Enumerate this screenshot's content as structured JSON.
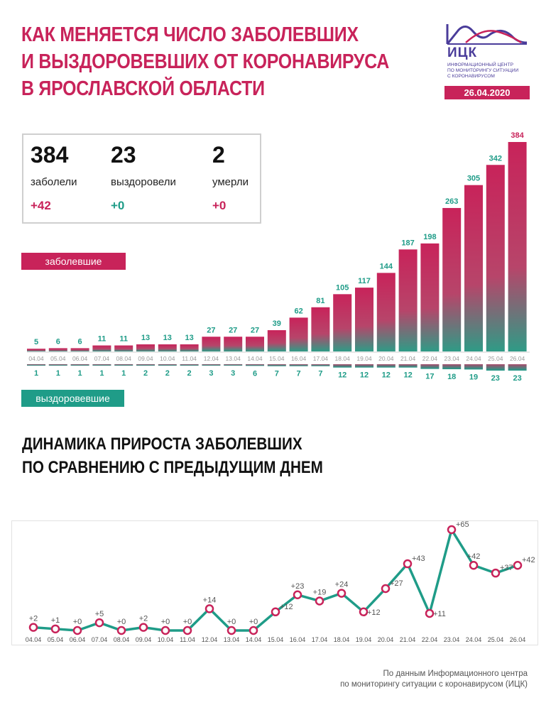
{
  "header": {
    "title_lines": [
      "Как меняется число заболевших",
      "и выздоровевших от коронавируса",
      "в Ярославской области"
    ]
  },
  "logo": {
    "abbr": "ИЦК",
    "text_lines": [
      "Информационный центр",
      "по мониторингу ситуации",
      "с коронавирусом"
    ],
    "date": "26.04.2020"
  },
  "summary": {
    "infected": {
      "value": "384",
      "label": "заболели",
      "delta": "+42"
    },
    "recovered": {
      "value": "23",
      "label": "выздоровели",
      "delta": "+0"
    },
    "died": {
      "value": "2",
      "label": "умерли",
      "delta": "+0"
    }
  },
  "legend": {
    "infected_label": "заболевшие",
    "recovered_label": "выздоровевшие"
  },
  "colors": {
    "accent_red": "#c8235a",
    "accent_green": "#1f9c88",
    "brand_purple": "#4a3c9a"
  },
  "chart_data": [
    {
      "type": "bar",
      "categories": [
        "04.04",
        "05.04",
        "06.04",
        "07.04",
        "08.04",
        "09.04",
        "10.04",
        "11.04",
        "12.04",
        "13.04",
        "14.04",
        "15.04",
        "16.04",
        "17.04",
        "18.04",
        "19.04",
        "20.04",
        "21.04",
        "22.04",
        "23.04",
        "24.04",
        "25.04",
        "26.04"
      ],
      "series": [
        {
          "name": "заболевшие",
          "values": [
            5,
            6,
            6,
            11,
            11,
            13,
            13,
            13,
            27,
            27,
            27,
            39,
            62,
            81,
            105,
            117,
            144,
            187,
            198,
            263,
            305,
            342,
            384
          ]
        },
        {
          "name": "выздоровевшие",
          "values": [
            1,
            1,
            1,
            1,
            1,
            2,
            2,
            2,
            3,
            3,
            6,
            7,
            7,
            7,
            12,
            12,
            12,
            12,
            17,
            18,
            19,
            23,
            23
          ]
        }
      ]
    },
    {
      "type": "line",
      "title": "Динамика прироста заболевших по сравнению с предыдущим днем",
      "categories": [
        "04.04",
        "05.04",
        "06.04",
        "07.04",
        "08.04",
        "09.04",
        "10.04",
        "11.04",
        "12.04",
        "13.04",
        "14.04",
        "15.04",
        "16.04",
        "17.04",
        "18.04",
        "19.04",
        "20.04",
        "21.04",
        "22.04",
        "23.04",
        "24.04",
        "25.04",
        "26.04"
      ],
      "values": [
        2,
        1,
        0,
        5,
        0,
        2,
        0,
        0,
        14,
        0,
        0,
        12,
        23,
        19,
        24,
        12,
        27,
        43,
        11,
        65,
        42,
        37,
        42
      ],
      "labels": [
        "+2",
        "+1",
        "+0",
        "+5",
        "+0",
        "+2",
        "+0",
        "+0",
        "+14",
        "+0",
        "+0",
        "+12",
        "+23",
        "+19",
        "+24",
        "+12",
        "+27",
        "+43",
        "+11",
        "+65",
        "+42",
        "+37",
        "+42"
      ]
    }
  ],
  "footer": {
    "lines": [
      "По данным Информационного центра",
      "по мониторингу ситуации с коронавирусом (ИЦК)"
    ]
  }
}
